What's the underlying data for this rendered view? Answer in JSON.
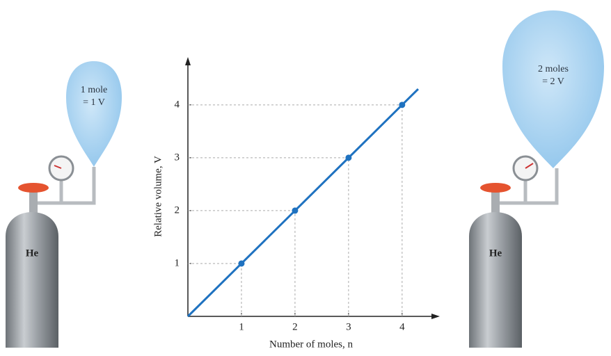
{
  "chart_data": {
    "type": "line",
    "x_label": "Number of moles, n",
    "y_label": "Relative volume, V",
    "x": [
      1,
      2,
      3,
      4
    ],
    "series": [
      {
        "color": "#1f72c0",
        "values": [
          1,
          2,
          3,
          4
        ]
      }
    ],
    "xlim": [
      0,
      4.6
    ],
    "ylim": [
      0,
      4.8
    ],
    "xticks": [
      1,
      2,
      3,
      4
    ],
    "yticks": [
      1,
      2,
      3,
      4
    ]
  },
  "illustrations": {
    "left": {
      "balloon": [
        "1 mole",
        "= 1 V"
      ],
      "cylinder": "He"
    },
    "right": {
      "balloon": [
        "2 moles",
        "= 2 V"
      ],
      "cylinder": "He"
    }
  }
}
